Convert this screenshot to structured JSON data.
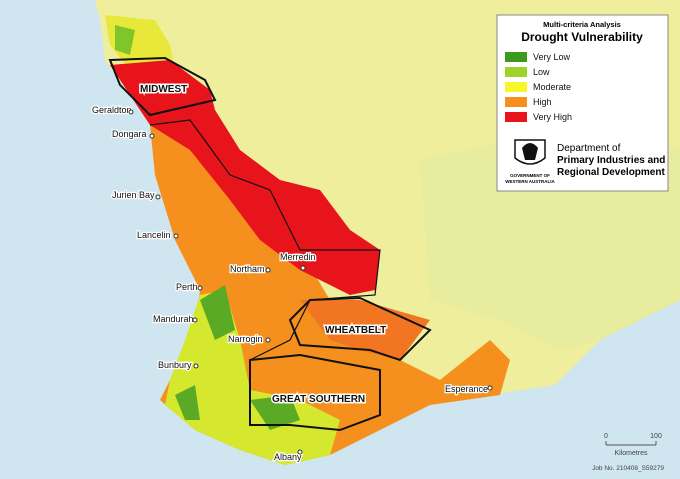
{
  "legend": {
    "subtitle": "Multi-criteria Analysis",
    "title": "Drought Vulnerability",
    "items": [
      {
        "label": "Very Low",
        "color": "#3c9a1f"
      },
      {
        "label": "Low",
        "color": "#9ed42a"
      },
      {
        "label": "Moderate",
        "color": "#f6f62a"
      },
      {
        "label": "High",
        "color": "#f5901e"
      },
      {
        "label": "Very High",
        "color": "#e8141b"
      }
    ]
  },
  "department": {
    "line1": "Department of",
    "line2": "Primary Industries and",
    "line3": "Regional Development",
    "crest_line1": "GOVERNMENT OF",
    "crest_line2": "WESTERN AUSTRALIA"
  },
  "regions": [
    "MIDWEST",
    "WHEATBELT",
    "GREAT SOUTHERN"
  ],
  "towns": [
    "Geraldton",
    "Dongara",
    "Jurien Bay",
    "Lancelin",
    "Northam",
    "Merredin",
    "Perth",
    "Mandurah",
    "Narrogin",
    "Bunbury",
    "Esperance",
    "Albany"
  ],
  "scale_bar": {
    "start": "0",
    "end": "100",
    "unit": "Kilometres"
  },
  "job_no": "Job No. 210408_S59279"
}
